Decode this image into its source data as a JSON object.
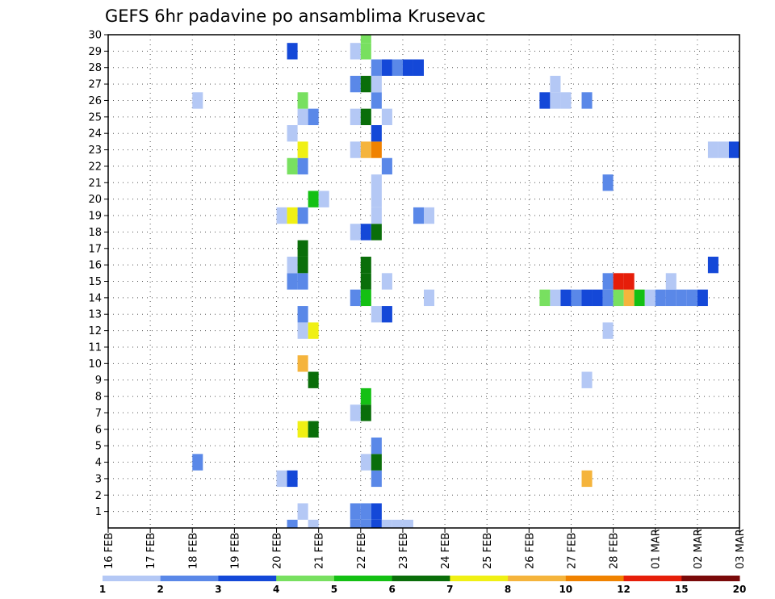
{
  "chart_data": {
    "type": "heatmap",
    "title": "GEFS 6hr padavine po ansamblima Krusevac",
    "y_range": [
      0,
      30
    ],
    "y_ticks": [
      1,
      2,
      3,
      4,
      5,
      6,
      7,
      8,
      9,
      10,
      11,
      12,
      13,
      14,
      15,
      16,
      17,
      18,
      19,
      20,
      21,
      22,
      23,
      24,
      25,
      26,
      27,
      28,
      29,
      30
    ],
    "x_ticks": [
      "16 FEB",
      "17 FEB",
      "18 FEB",
      "19 FEB",
      "20 FEB",
      "21 FEB",
      "22 FEB",
      "23 FEB",
      "24 FEB",
      "25 FEB",
      "26 FEB",
      "27 FEB",
      "28 FEB",
      "01 MAR",
      "02 MAR",
      "03 MAR"
    ],
    "grid": true,
    "legend": {
      "placement": "bottom",
      "labels": [
        "1",
        "2",
        "3",
        "4",
        "5",
        "6",
        "7",
        "8",
        "10",
        "12",
        "15",
        "20"
      ],
      "colors": [
        "#b4c8f5",
        "#5a88e8",
        "#1448d8",
        "#78e060",
        "#14c014",
        "#0a6e0a",
        "#f0f014",
        "#f5b43c",
        "#f08200",
        "#e61e0a",
        "#7a0a0a"
      ]
    },
    "cells": [
      {
        "x": 4.25,
        "y": 0,
        "c": 1
      },
      {
        "x": 4.75,
        "y": 0,
        "c": 0
      },
      {
        "x": 5.75,
        "y": 0,
        "c": 1
      },
      {
        "x": 6,
        "y": 0,
        "c": 1
      },
      {
        "x": 6.25,
        "y": 0,
        "c": 2
      },
      {
        "x": 6.5,
        "y": 0,
        "c": 0
      },
      {
        "x": 6.75,
        "y": 0,
        "c": 0
      },
      {
        "x": 7,
        "y": 0,
        "c": 0
      },
      {
        "x": 4.5,
        "y": 1,
        "c": 0
      },
      {
        "x": 5.75,
        "y": 1,
        "c": 1
      },
      {
        "x": 6,
        "y": 1,
        "c": 1
      },
      {
        "x": 6.25,
        "y": 1,
        "c": 2
      },
      {
        "x": 4,
        "y": 3,
        "c": 0
      },
      {
        "x": 4.25,
        "y": 3,
        "c": 2
      },
      {
        "x": 6.25,
        "y": 3,
        "c": 1
      },
      {
        "x": 11.25,
        "y": 3,
        "c": 7
      },
      {
        "x": 2,
        "y": 4,
        "c": 1
      },
      {
        "x": 6,
        "y": 4,
        "c": 0
      },
      {
        "x": 6.25,
        "y": 4,
        "c": 5
      },
      {
        "x": 6.25,
        "y": 5,
        "c": 1
      },
      {
        "x": 4.5,
        "y": 6,
        "c": 6
      },
      {
        "x": 4.75,
        "y": 6,
        "c": 5
      },
      {
        "x": 5.75,
        "y": 7,
        "c": 0
      },
      {
        "x": 6,
        "y": 7,
        "c": 5
      },
      {
        "x": 6,
        "y": 8,
        "c": 4
      },
      {
        "x": 4.75,
        "y": 9,
        "c": 5
      },
      {
        "x": 11.25,
        "y": 9,
        "c": 0
      },
      {
        "x": 4.5,
        "y": 10,
        "c": 7
      },
      {
        "x": 4.5,
        "y": 12,
        "c": 0
      },
      {
        "x": 4.75,
        "y": 12,
        "c": 6
      },
      {
        "x": 11.75,
        "y": 12,
        "c": 0
      },
      {
        "x": 4.5,
        "y": 13,
        "c": 1
      },
      {
        "x": 6.25,
        "y": 13,
        "c": 0
      },
      {
        "x": 6.5,
        "y": 13,
        "c": 2
      },
      {
        "x": 5.75,
        "y": 14,
        "c": 1
      },
      {
        "x": 6,
        "y": 14,
        "c": 4
      },
      {
        "x": 7.5,
        "y": 14,
        "c": 0
      },
      {
        "x": 10.25,
        "y": 14,
        "c": 3
      },
      {
        "x": 10.5,
        "y": 14,
        "c": 0
      },
      {
        "x": 10.75,
        "y": 14,
        "c": 2
      },
      {
        "x": 11,
        "y": 14,
        "c": 1
      },
      {
        "x": 11.25,
        "y": 14,
        "c": 2
      },
      {
        "x": 11.5,
        "y": 14,
        "c": 2
      },
      {
        "x": 11.75,
        "y": 14,
        "c": 1
      },
      {
        "x": 12,
        "y": 14,
        "c": 3
      },
      {
        "x": 12.25,
        "y": 14,
        "c": 7
      },
      {
        "x": 12.5,
        "y": 14,
        "c": 4
      },
      {
        "x": 12.75,
        "y": 14,
        "c": 0
      },
      {
        "x": 13,
        "y": 14,
        "c": 1
      },
      {
        "x": 13.25,
        "y": 14,
        "c": 1
      },
      {
        "x": 13.5,
        "y": 14,
        "c": 1
      },
      {
        "x": 13.75,
        "y": 14,
        "c": 1
      },
      {
        "x": 14,
        "y": 14,
        "c": 2
      },
      {
        "x": 4.25,
        "y": 15,
        "c": 1
      },
      {
        "x": 4.5,
        "y": 15,
        "c": 1
      },
      {
        "x": 6,
        "y": 15,
        "c": 5
      },
      {
        "x": 6.5,
        "y": 15,
        "c": 0
      },
      {
        "x": 11.75,
        "y": 15,
        "c": 1
      },
      {
        "x": 12,
        "y": 15,
        "c": 9
      },
      {
        "x": 12.25,
        "y": 15,
        "c": 9
      },
      {
        "x": 13.25,
        "y": 15,
        "c": 0
      },
      {
        "x": 4.25,
        "y": 16,
        "c": 0
      },
      {
        "x": 4.5,
        "y": 16,
        "c": 5
      },
      {
        "x": 6,
        "y": 16,
        "c": 5
      },
      {
        "x": 14.25,
        "y": 16,
        "c": 2
      },
      {
        "x": 4.5,
        "y": 17,
        "c": 5
      },
      {
        "x": 5.75,
        "y": 18,
        "c": 0
      },
      {
        "x": 6,
        "y": 18,
        "c": 2
      },
      {
        "x": 6.25,
        "y": 18,
        "c": 5
      },
      {
        "x": 4,
        "y": 19,
        "c": 0
      },
      {
        "x": 4.25,
        "y": 19,
        "c": 6
      },
      {
        "x": 4.5,
        "y": 19,
        "c": 1
      },
      {
        "x": 6.25,
        "y": 19,
        "c": 0
      },
      {
        "x": 7.25,
        "y": 19,
        "c": 1
      },
      {
        "x": 7.5,
        "y": 19,
        "c": 0
      },
      {
        "x": 4.75,
        "y": 20,
        "c": 4
      },
      {
        "x": 5,
        "y": 20,
        "c": 0
      },
      {
        "x": 6.25,
        "y": 20,
        "c": 0
      },
      {
        "x": 6.25,
        "y": 21,
        "c": 0
      },
      {
        "x": 11.75,
        "y": 21,
        "c": 1
      },
      {
        "x": 4.25,
        "y": 22,
        "c": 3
      },
      {
        "x": 4.5,
        "y": 22,
        "c": 1
      },
      {
        "x": 6.5,
        "y": 22,
        "c": 1
      },
      {
        "x": 4.5,
        "y": 23,
        "c": 6
      },
      {
        "x": 5.75,
        "y": 23,
        "c": 0
      },
      {
        "x": 6,
        "y": 23,
        "c": 7
      },
      {
        "x": 6.25,
        "y": 23,
        "c": 8
      },
      {
        "x": 14.25,
        "y": 23,
        "c": 0
      },
      {
        "x": 14.5,
        "y": 23,
        "c": 0
      },
      {
        "x": 14.75,
        "y": 23,
        "c": 2
      },
      {
        "x": 15,
        "y": 23,
        "c": 1
      },
      {
        "x": 4.25,
        "y": 24,
        "c": 0
      },
      {
        "x": 6.25,
        "y": 24,
        "c": 2
      },
      {
        "x": 4.5,
        "y": 25,
        "c": 0
      },
      {
        "x": 4.75,
        "y": 25,
        "c": 1
      },
      {
        "x": 5.75,
        "y": 25,
        "c": 0
      },
      {
        "x": 6,
        "y": 25,
        "c": 5
      },
      {
        "x": 6.5,
        "y": 25,
        "c": 0
      },
      {
        "x": 2,
        "y": 26,
        "c": 0
      },
      {
        "x": 4.5,
        "y": 26,
        "c": 3
      },
      {
        "x": 6.25,
        "y": 26,
        "c": 1
      },
      {
        "x": 10.25,
        "y": 26,
        "c": 2
      },
      {
        "x": 10.5,
        "y": 26,
        "c": 0
      },
      {
        "x": 10.75,
        "y": 26,
        "c": 0
      },
      {
        "x": 11.25,
        "y": 26,
        "c": 1
      },
      {
        "x": 5.75,
        "y": 27,
        "c": 1
      },
      {
        "x": 6,
        "y": 27,
        "c": 5
      },
      {
        "x": 6.25,
        "y": 27,
        "c": 0
      },
      {
        "x": 10.5,
        "y": 27,
        "c": 0
      },
      {
        "x": 6.25,
        "y": 28,
        "c": 1
      },
      {
        "x": 6.5,
        "y": 28,
        "c": 2
      },
      {
        "x": 6.75,
        "y": 28,
        "c": 1
      },
      {
        "x": 7,
        "y": 28,
        "c": 2
      },
      {
        "x": 7.25,
        "y": 28,
        "c": 2
      },
      {
        "x": 4.25,
        "y": 29,
        "c": 2
      },
      {
        "x": 5.75,
        "y": 29,
        "c": 0
      },
      {
        "x": 6,
        "y": 29,
        "c": 3
      },
      {
        "x": 6,
        "y": 30,
        "c": 3
      }
    ]
  }
}
